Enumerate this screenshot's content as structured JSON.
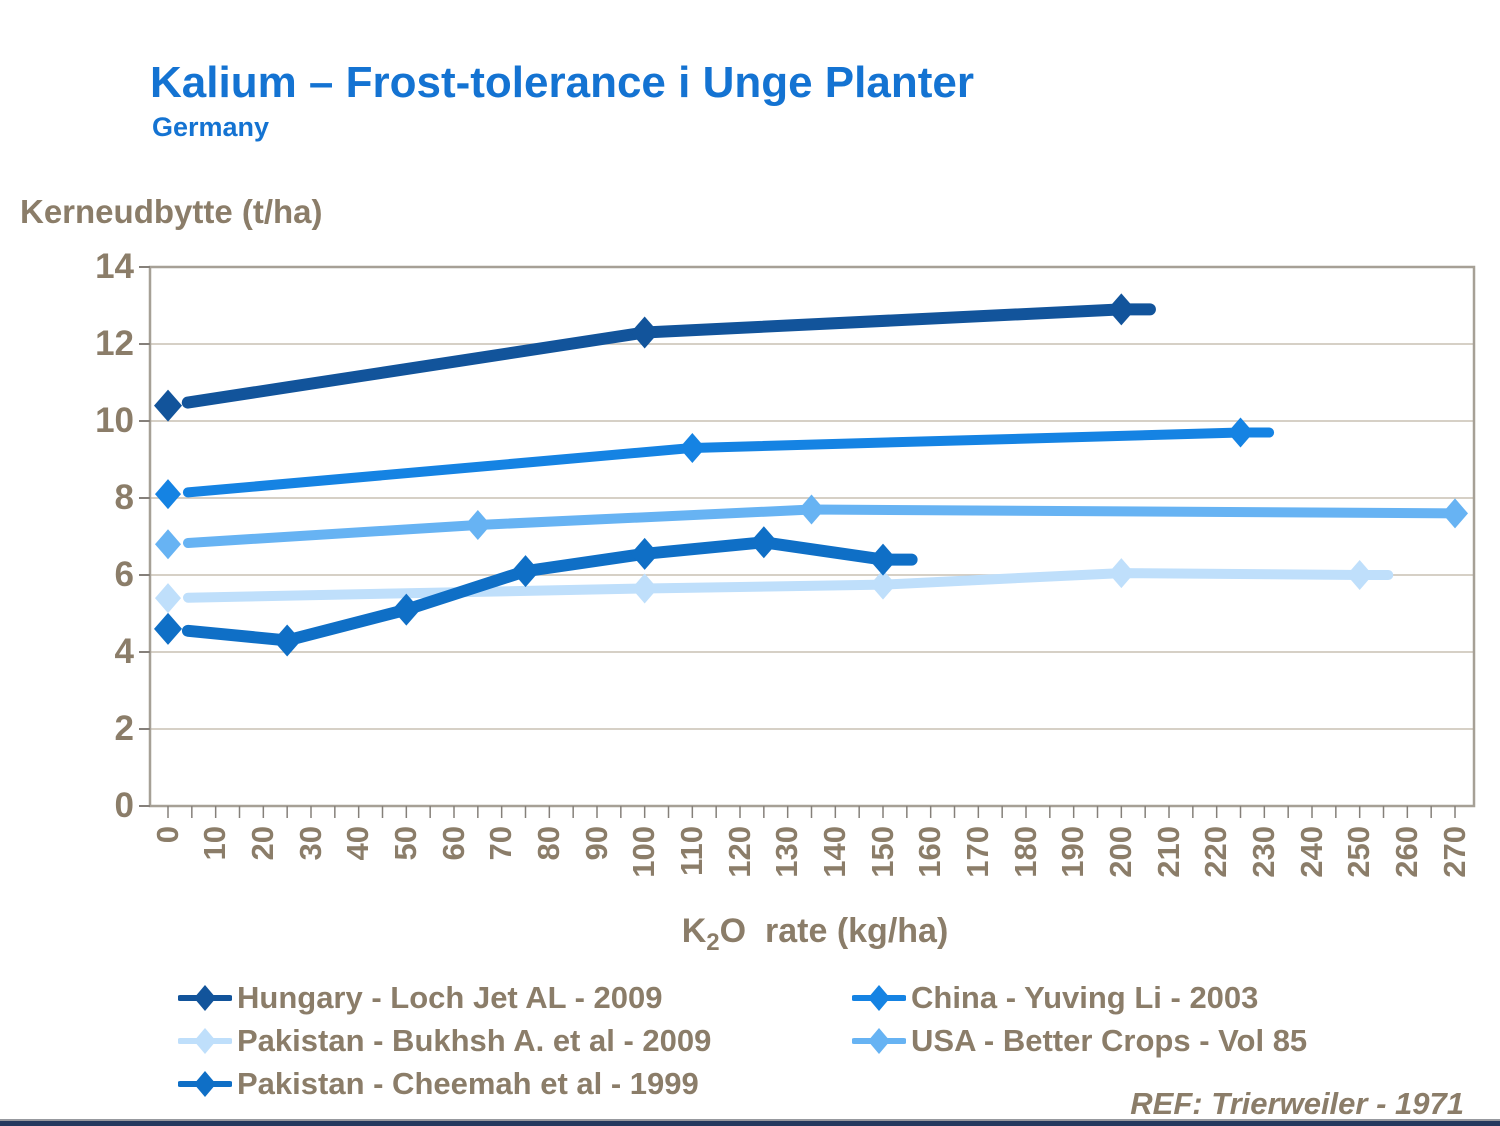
{
  "title": "Kalium – Frost-tolerance i Unge Planter",
  "subtitle": "Germany",
  "ref_note": "REF: Trierweiler - 1971",
  "colors": {
    "title_blue": "#1473D2",
    "axis_text_brown": "#8B7D69",
    "gridline": "#C8C0B4",
    "plot_frame": "#A6A096",
    "tick_mark": "#85807A",
    "bottom_bar": "#24395E"
  },
  "chart_data": {
    "type": "line",
    "title": "Kalium – Frost-tolerance i Unge Planter (Germany)",
    "ylabel": "Kerneudbytte (t/ha)",
    "xlabel": "K2O  rate (kg/ha)",
    "xlabel_parts": {
      "pre": "K",
      "sub": "2",
      "post": "O  rate (kg/ha)"
    },
    "xlim": [
      0,
      270
    ],
    "ylim": [
      0,
      14
    ],
    "x_tick_labels": [
      0,
      10,
      20,
      30,
      40,
      50,
      60,
      70,
      80,
      90,
      100,
      110,
      120,
      130,
      140,
      150,
      160,
      170,
      180,
      190,
      200,
      210,
      220,
      230,
      240,
      250,
      260,
      270
    ],
    "x_minor_tick_step": 5,
    "y_tick_labels": [
      0,
      2,
      4,
      6,
      8,
      10,
      12,
      14
    ],
    "grid": "horizontal",
    "legend_position": "bottom",
    "series": [
      {
        "name": "Hungary - Loch Jet AL - 2009",
        "color": "#12549B",
        "marker": "diamond",
        "line_width": 12,
        "x": [
          0,
          100,
          200
        ],
        "values": [
          10.4,
          12.3,
          12.9
        ],
        "tail_x": 206
      },
      {
        "name": "China - Yuving Li - 2003",
        "color": "#1583E3",
        "marker": "diamond",
        "line_width": 10,
        "x": [
          0,
          110,
          225
        ],
        "values": [
          8.1,
          9.3,
          9.7
        ],
        "tail_x": 231
      },
      {
        "name": "Pakistan - Bukhsh A. et al - 2009",
        "color": "#BFDFFB",
        "marker": "diamond",
        "line_width": 10,
        "x": [
          0,
          100,
          150,
          200,
          250
        ],
        "values": [
          5.4,
          5.65,
          5.75,
          6.05,
          6.0
        ],
        "tail_x": 256
      },
      {
        "name": "USA - Better Crops - Vol 85",
        "color": "#67B3F3",
        "marker": "diamond",
        "line_width": 10,
        "x": [
          0,
          65,
          135,
          270
        ],
        "values": [
          6.8,
          7.3,
          7.7,
          7.6
        ],
        "tail_x": null
      },
      {
        "name": "Pakistan - Cheemah et al - 1999",
        "color": "#0F6FC6",
        "marker": "diamond",
        "line_width": 12,
        "x": [
          0,
          25,
          50,
          75,
          100,
          125,
          150
        ],
        "values": [
          4.6,
          4.3,
          5.1,
          6.1,
          6.55,
          6.85,
          6.4
        ],
        "tail_x": 156
      }
    ]
  }
}
